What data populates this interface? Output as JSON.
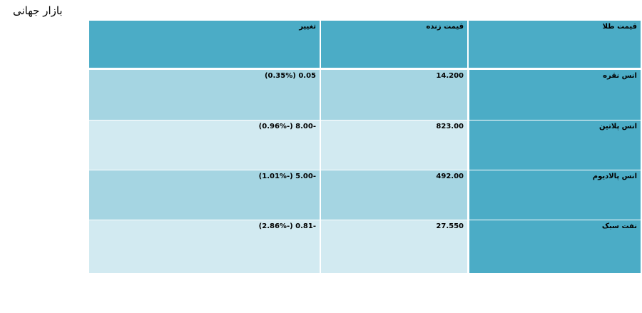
{
  "page": {
    "title": "بازار جهانی"
  },
  "table": {
    "headers": {
      "name": "قیمت طلا",
      "price": "قیمت زنده",
      "change": "تغییر"
    },
    "rows": [
      {
        "name": "انس نقره",
        "price": "14.200",
        "change": "0.05 (0.35%)"
      },
      {
        "name": "انس پلاتین",
        "price": "823.00",
        "change": "-8.00 (-0.96%)"
      },
      {
        "name": "انس پالادیوم",
        "price": "492.00",
        "change": "-5.00 (-1.01%)"
      },
      {
        "name": "نفت سبک",
        "price": "27.550",
        "change": "-0.81 (-2.86%)"
      }
    ]
  },
  "colors": {
    "header_bg": "#4bacc6",
    "row_odd_bg": "#a5d5e2",
    "row_even_bg": "#d2eaf1"
  }
}
